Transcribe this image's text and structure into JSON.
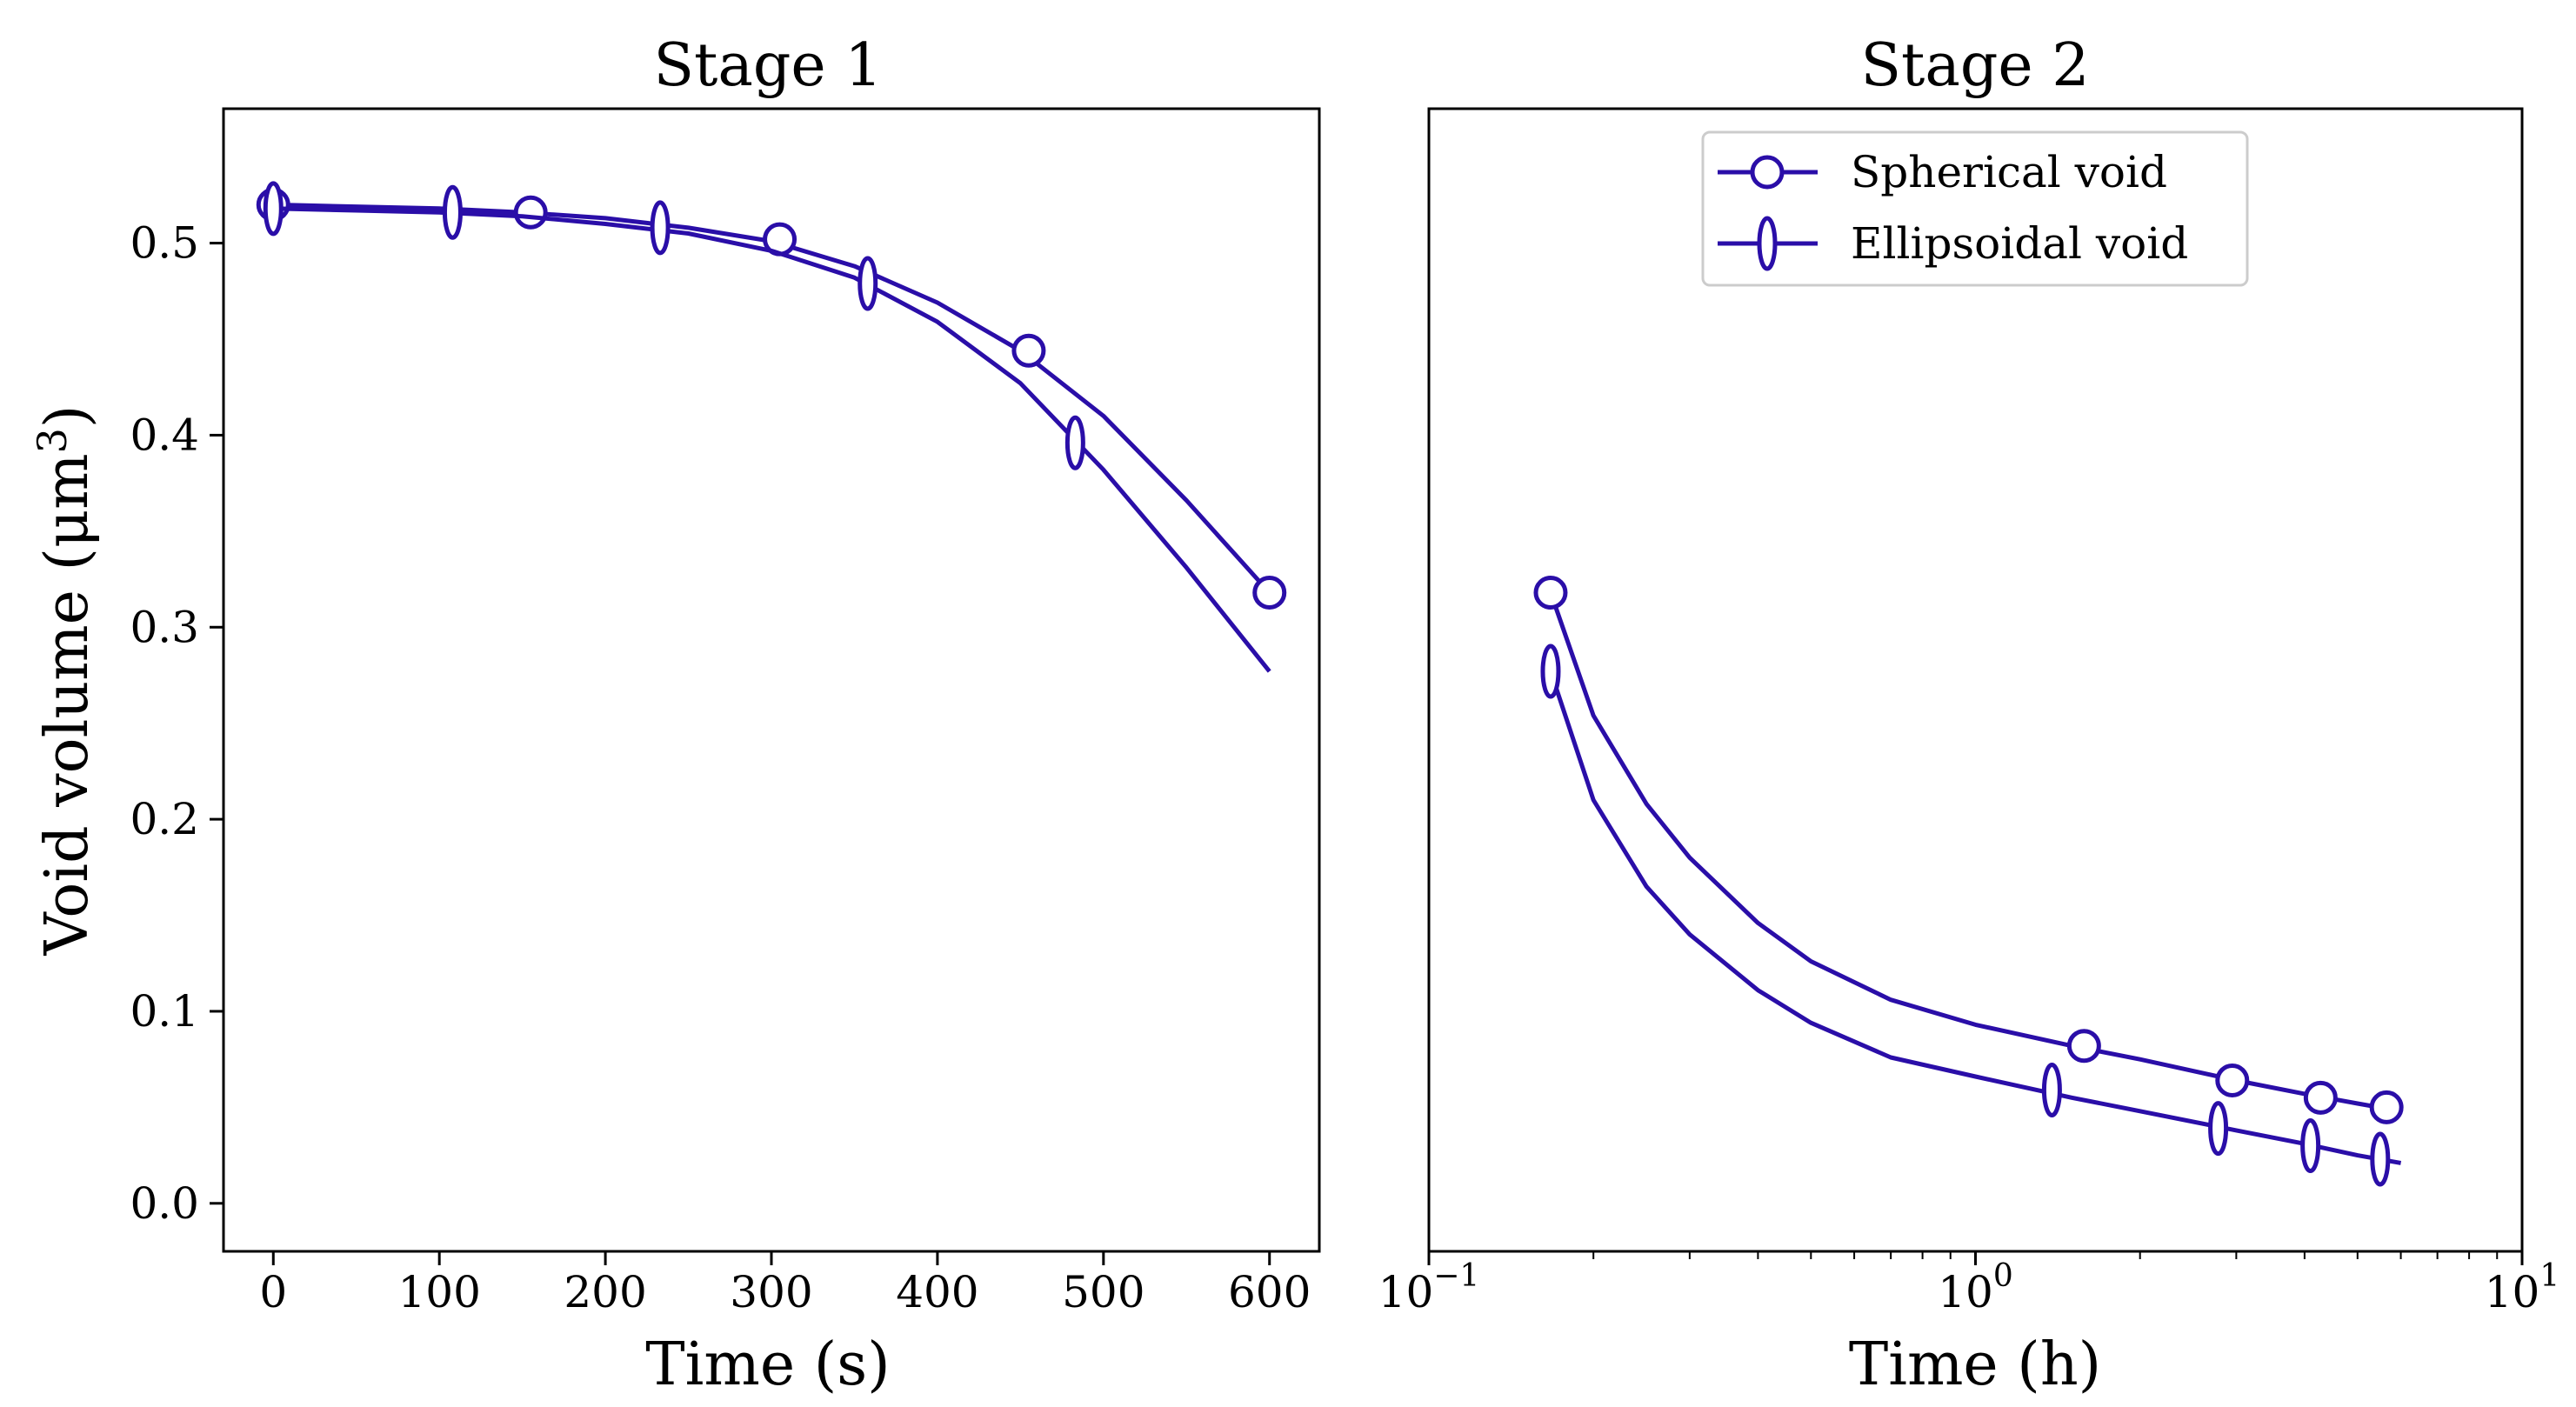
{
  "colors": {
    "series": "#2a0ea8",
    "axis": "#000000",
    "background": "#ffffff",
    "legend_border": "#cccccc"
  },
  "shared": {
    "ylabel": "Void volume (μm",
    "ylabel_sup": "3",
    "ylabel_close": ")"
  },
  "chart_data": [
    {
      "type": "line",
      "title": "Stage 1",
      "xlabel": "Time (s)",
      "ylabel": "Void volume (μm³)",
      "xscale": "linear",
      "xlim": [
        -30,
        630
      ],
      "ylim": [
        -0.025,
        0.57
      ],
      "xticks": [
        0,
        100,
        200,
        300,
        400,
        500,
        600
      ],
      "xtick_labels": [
        "0",
        "100",
        "200",
        "300",
        "400",
        "500",
        "600"
      ],
      "yticks": [
        0.0,
        0.1,
        0.2,
        0.3,
        0.4,
        0.5
      ],
      "ytick_labels": [
        "0.0",
        "0.1",
        "0.2",
        "0.3",
        "0.4",
        "0.5"
      ],
      "series": [
        {
          "name": "Spherical void",
          "marker": "circle",
          "x": [
            0,
            50,
            100,
            150,
            200,
            250,
            300,
            350,
            400,
            450,
            500,
            550,
            600
          ],
          "y": [
            0.52,
            0.519,
            0.518,
            0.516,
            0.513,
            0.508,
            0.501,
            0.488,
            0.469,
            0.444,
            0.41,
            0.366,
            0.318
          ],
          "markers_x": [
            0,
            155,
            305,
            455,
            600
          ],
          "markers_y": [
            0.52,
            0.516,
            0.502,
            0.444,
            0.318
          ]
        },
        {
          "name": "Ellipsoidal void",
          "marker": "ellipse",
          "x": [
            0,
            50,
            100,
            150,
            200,
            250,
            300,
            350,
            400,
            450,
            500,
            550,
            600
          ],
          "y": [
            0.518,
            0.517,
            0.516,
            0.514,
            0.51,
            0.505,
            0.496,
            0.482,
            0.459,
            0.427,
            0.382,
            0.331,
            0.277
          ],
          "markers_x": [
            0,
            108,
            233,
            358,
            483
          ],
          "markers_y": [
            0.518,
            0.516,
            0.508,
            0.479,
            0.396
          ]
        }
      ]
    },
    {
      "type": "line",
      "title": "Stage 2",
      "xlabel": "Time (h)",
      "ylabel": "",
      "xscale": "log",
      "xlim": [
        0.1,
        10
      ],
      "ylim": [
        -0.025,
        0.57
      ],
      "xticks": [
        0.1,
        1,
        10
      ],
      "xtick_labels": [
        {
          "base": "10",
          "exp": "−1"
        },
        {
          "base": "10",
          "exp": "0"
        },
        {
          "base": "10",
          "exp": "1"
        }
      ],
      "minor_xticks": [
        0.2,
        0.3,
        0.4,
        0.5,
        0.6,
        0.7,
        0.8,
        0.9,
        2,
        3,
        4,
        5,
        6,
        7,
        8,
        9
      ],
      "legend": {
        "location": "upper center",
        "entries": [
          "Spherical void",
          "Ellipsoidal void"
        ]
      },
      "series": [
        {
          "name": "Spherical void",
          "marker": "circle",
          "x": [
            0.167,
            0.2,
            0.25,
            0.3,
            0.4,
            0.5,
            0.7,
            1.0,
            1.5,
            2.0,
            3.0,
            4.0,
            5.0,
            6.0
          ],
          "y": [
            0.318,
            0.254,
            0.208,
            0.18,
            0.146,
            0.126,
            0.106,
            0.093,
            0.082,
            0.075,
            0.064,
            0.057,
            0.052,
            0.048
          ],
          "markers_x": [
            0.167,
            1.58,
            2.95,
            4.28,
            5.65
          ],
          "markers_y": [
            0.318,
            0.082,
            0.064,
            0.055,
            0.05
          ]
        },
        {
          "name": "Ellipsoidal void",
          "marker": "ellipse",
          "x": [
            0.167,
            0.2,
            0.25,
            0.3,
            0.4,
            0.5,
            0.7,
            1.0,
            1.5,
            2.0,
            3.0,
            4.0,
            5.0,
            6.0
          ],
          "y": [
            0.277,
            0.21,
            0.165,
            0.14,
            0.111,
            0.094,
            0.076,
            0.066,
            0.055,
            0.048,
            0.038,
            0.031,
            0.025,
            0.021
          ],
          "markers_x": [
            0.167,
            1.38,
            2.78,
            4.1,
            5.5
          ],
          "markers_y": [
            0.277,
            0.059,
            0.039,
            0.03,
            0.023
          ]
        }
      ]
    }
  ]
}
